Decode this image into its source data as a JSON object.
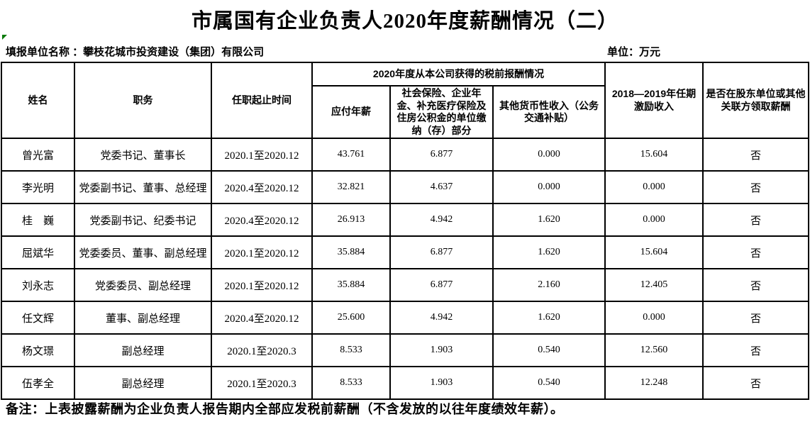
{
  "page": {
    "title": "市属国有企业负责人2020年度薪酬情况（二）",
    "reporting_unit": "填报单位名称 ：攀枝花城市投资建设（集团）有限公司",
    "unit_label": "单位：万元",
    "note": "备注：上表披露薪酬为企业负责人报告期内全部应发税前薪酬（不含发放的以往年度绩效年薪）。"
  },
  "table": {
    "headers": {
      "name": "姓名",
      "position": "职务",
      "term": "任职起止时间",
      "pretax_group": "2020年度从本公司获得的税前报酬情况",
      "annual_salary": "应付年薪",
      "insurance": "社会保险、企业年金、补充医疗保险及住房公积金的单位缴纳（存）部分",
      "other_cash": "其他货币性收入（公务交通补贴）",
      "incentive": "2018—2019年任期激励收入",
      "related_pay": "是否在股东单位或其他关联方领取薪酬"
    },
    "rows": [
      {
        "name": "曾光富",
        "position": "党委书记、董事长",
        "term": "2020.1至2020.12",
        "salary": "43.761",
        "insurance": "6.877",
        "other_cash": "0.000",
        "incentive": "15.604",
        "related": "否"
      },
      {
        "name": "李光明",
        "position": "党委副书记、董事、总经理",
        "term": "2020.4至2020.12",
        "salary": "32.821",
        "insurance": "4.637",
        "other_cash": "0.000",
        "incentive": "0.000",
        "related": "否"
      },
      {
        "name": "桂　巍",
        "position": "党委副书记、纪委书记",
        "term": "2020.4至2020.12",
        "salary": "26.913",
        "insurance": "4.942",
        "other_cash": "1.620",
        "incentive": "0.000",
        "related": "否"
      },
      {
        "name": "屈斌华",
        "position": "党委委员、董事、副总经理",
        "term": "2020.1至2020.12",
        "salary": "35.884",
        "insurance": "6.877",
        "other_cash": "1.620",
        "incentive": "15.604",
        "related": "否"
      },
      {
        "name": "刘永志",
        "position": "党委委员、副总经理",
        "term": "2020.1至2020.12",
        "salary": "35.884",
        "insurance": "6.877",
        "other_cash": "2.160",
        "incentive": "12.405",
        "related": "否"
      },
      {
        "name": "任文辉",
        "position": "董事、副总经理",
        "term": "2020.4至2020.12",
        "salary": "25.600",
        "insurance": "4.942",
        "other_cash": "1.620",
        "incentive": "0.000",
        "related": "否"
      },
      {
        "name": "杨文璟",
        "position": "副总经理",
        "term": "2020.1至2020.3",
        "salary": "8.533",
        "insurance": "1.903",
        "other_cash": "0.540",
        "incentive": "12.560",
        "related": "否"
      },
      {
        "name": "伍孝全",
        "position": "副总经理",
        "term": "2020.1至2020.3",
        "salary": "8.533",
        "insurance": "1.903",
        "other_cash": "0.540",
        "incentive": "12.248",
        "related": "否"
      }
    ]
  },
  "colors": {
    "border": "#000000",
    "text": "#000000",
    "corner_marker": "#0a7a0a"
  }
}
